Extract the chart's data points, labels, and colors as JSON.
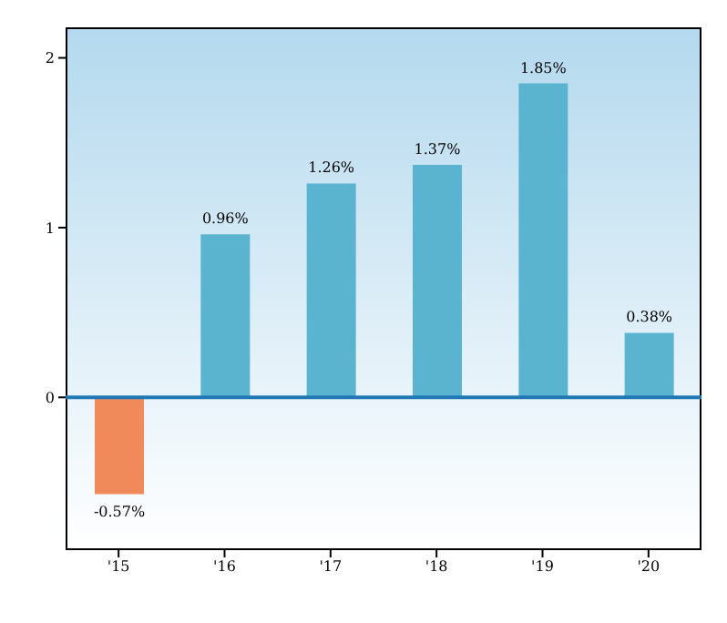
{
  "chart_data": {
    "type": "bar",
    "categories": [
      "'15",
      "'16",
      "'17",
      "'18",
      "'19",
      "'20"
    ],
    "values": [
      -0.57,
      0.96,
      1.26,
      1.37,
      1.85,
      0.38
    ],
    "colors": [
      "#f08a5a",
      "#5ab4cf",
      "#5ab4cf",
      "#5ab4cf",
      "#5ab4cf",
      "#5ab4cf"
    ],
    "value_labels": [
      "-0.57%",
      "0.96%",
      "1.26%",
      "1.37%",
      "1.85%",
      "0.38%"
    ],
    "ylim": [
      -0.9,
      2.18
    ],
    "yticks": [
      0,
      1,
      2
    ],
    "grid": false,
    "ref_lines": [
      {
        "axis": "y",
        "value": 0,
        "color": "#1f78b4"
      }
    ]
  }
}
